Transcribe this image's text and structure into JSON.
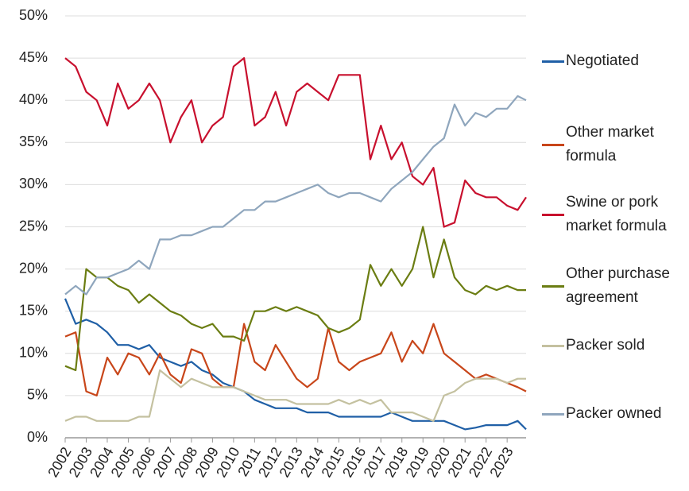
{
  "chart_data": {
    "type": "line",
    "x": [
      2002,
      2002.5,
      2003,
      2003.5,
      2004,
      2004.5,
      2005,
      2005.5,
      2006,
      2006.5,
      2007,
      2007.5,
      2008,
      2008.5,
      2009,
      2009.5,
      2010,
      2010.5,
      2011,
      2011.5,
      2012,
      2012.5,
      2013,
      2013.5,
      2014,
      2014.5,
      2015,
      2015.5,
      2016,
      2016.5,
      2017,
      2017.5,
      2018,
      2018.5,
      2019,
      2019.5,
      2020,
      2020.5,
      2021,
      2021.5,
      2022,
      2022.5,
      2023,
      2023.5,
      2023.9
    ],
    "series": [
      {
        "name": "Negotiated",
        "color": "#1f5fa6",
        "values": [
          16.5,
          13.5,
          14,
          13.5,
          12.5,
          11,
          11,
          10.5,
          11,
          9.5,
          9,
          8.5,
          9,
          8,
          7.5,
          6.5,
          6,
          5.5,
          4.5,
          4,
          3.5,
          3.5,
          3.5,
          3,
          3,
          3,
          2.5,
          2.5,
          2.5,
          2.5,
          2.5,
          3,
          2.5,
          2,
          2,
          2,
          2,
          1.5,
          1,
          1.2,
          1.5,
          1.5,
          1.5,
          2,
          1
        ]
      },
      {
        "name": "Other market formula",
        "color": "#c8461a",
        "values": [
          12,
          12.5,
          5.5,
          5,
          9.5,
          7.5,
          10,
          9.5,
          7.5,
          10,
          7.5,
          6.5,
          10.5,
          10,
          7,
          6,
          6,
          13.5,
          9,
          8,
          11,
          9,
          7,
          6,
          7,
          13,
          9,
          8,
          9,
          9.5,
          10,
          12.5,
          9,
          11.5,
          10,
          13.5,
          10,
          9,
          8,
          7,
          7.5,
          7,
          6.5,
          6,
          5.5
        ]
      },
      {
        "name": "Swine or pork market formula",
        "color": "#c8102e",
        "values": [
          45,
          44,
          41,
          40,
          37,
          42,
          39,
          40,
          42,
          40,
          35,
          38,
          40,
          35,
          37,
          38,
          44,
          45,
          37,
          38,
          41,
          37,
          41,
          42,
          41,
          40,
          43,
          43,
          43,
          33,
          37,
          33,
          35,
          31,
          30,
          32,
          25,
          25.5,
          30.5,
          29,
          28.5,
          28.5,
          27.5,
          27,
          28.5
        ]
      },
      {
        "name": "Other purchase agreement",
        "color": "#6b7d12",
        "values": [
          8.5,
          8,
          20,
          19,
          19,
          18,
          17.5,
          16,
          17,
          16,
          15,
          14.5,
          13.5,
          13,
          13.5,
          12,
          12,
          11.5,
          15,
          15,
          15.5,
          15,
          15.5,
          15,
          14.5,
          13,
          12.5,
          13,
          14,
          20.5,
          18,
          20,
          18,
          20,
          25,
          19,
          23.5,
          19,
          17.5,
          17,
          18,
          17.5,
          18,
          17.5,
          17.5
        ]
      },
      {
        "name": "Packer sold",
        "color": "#c4c1a0",
        "values": [
          2,
          2.5,
          2.5,
          2,
          2,
          2,
          2,
          2.5,
          2.5,
          8,
          7,
          6,
          7,
          6.5,
          6,
          6,
          6,
          5.5,
          5,
          4.5,
          4.5,
          4.5,
          4,
          4,
          4,
          4,
          4.5,
          4,
          4.5,
          4,
          4.5,
          3,
          3,
          3,
          2.5,
          2,
          5,
          5.5,
          6.5,
          7,
          7,
          7,
          6.5,
          7,
          7
        ]
      },
      {
        "name": "Packer owned",
        "color": "#8fa6bd",
        "values": [
          17,
          18,
          17,
          19,
          19,
          19.5,
          20,
          21,
          20,
          23.5,
          23.5,
          24,
          24,
          24.5,
          25,
          25,
          26,
          27,
          27,
          28,
          28,
          28.5,
          29,
          29.5,
          30,
          29,
          28.5,
          29,
          29,
          28.5,
          28,
          29.5,
          30.5,
          31.5,
          33,
          34.5,
          35.5,
          39.5,
          37,
          38.5,
          38,
          39,
          39,
          40.5,
          40
        ]
      }
    ],
    "xlim": [
      2002,
      2023.9
    ],
    "xticks": [
      2002,
      2003,
      2004,
      2005,
      2006,
      2007,
      2008,
      2009,
      2010,
      2011,
      2012,
      2013,
      2014,
      2015,
      2016,
      2017,
      2018,
      2019,
      2020,
      2021,
      2022,
      2023
    ],
    "ylim": [
      0,
      50
    ],
    "yticks": [
      {
        "value": 0,
        "label": "0%"
      },
      {
        "value": 5,
        "label": "5%"
      },
      {
        "value": 10,
        "label": "10%"
      },
      {
        "value": 15,
        "label": "15%"
      },
      {
        "value": 20,
        "label": "20%"
      },
      {
        "value": 25,
        "label": "25%"
      },
      {
        "value": 30,
        "label": "30%"
      },
      {
        "value": 35,
        "label": "35%"
      },
      {
        "value": 40,
        "label": "40%"
      },
      {
        "value": 45,
        "label": "45%"
      },
      {
        "value": 50,
        "label": "50%"
      }
    ],
    "grid": true
  }
}
